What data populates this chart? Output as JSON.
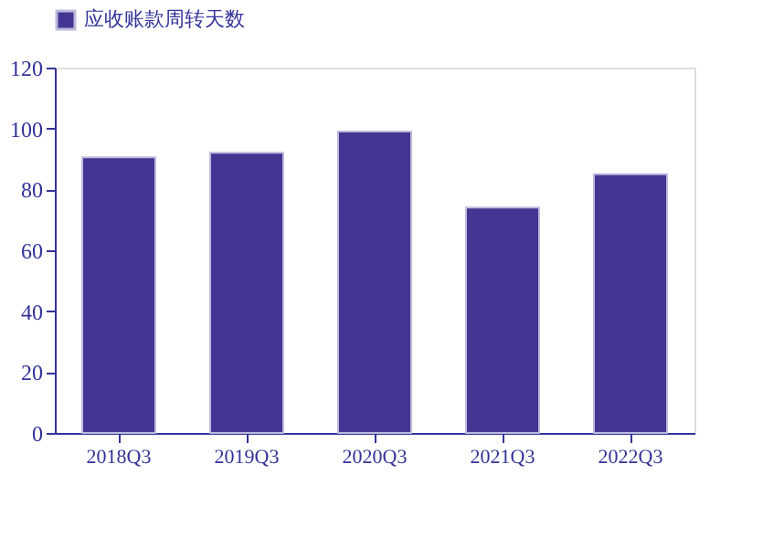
{
  "chart_data": {
    "type": "bar",
    "categories": [
      "2018Q3",
      "2019Q3",
      "2020Q3",
      "2021Q3",
      "2022Q3"
    ],
    "series": [
      {
        "name": "应收账款周转天数",
        "color": "#443592",
        "values": [
          90.5,
          92,
          99,
          74,
          85
        ]
      }
    ],
    "ylim": [
      0,
      120
    ],
    "yticks": [
      0,
      20,
      40,
      60,
      80,
      100,
      120
    ],
    "grid": false,
    "legend": "top"
  }
}
